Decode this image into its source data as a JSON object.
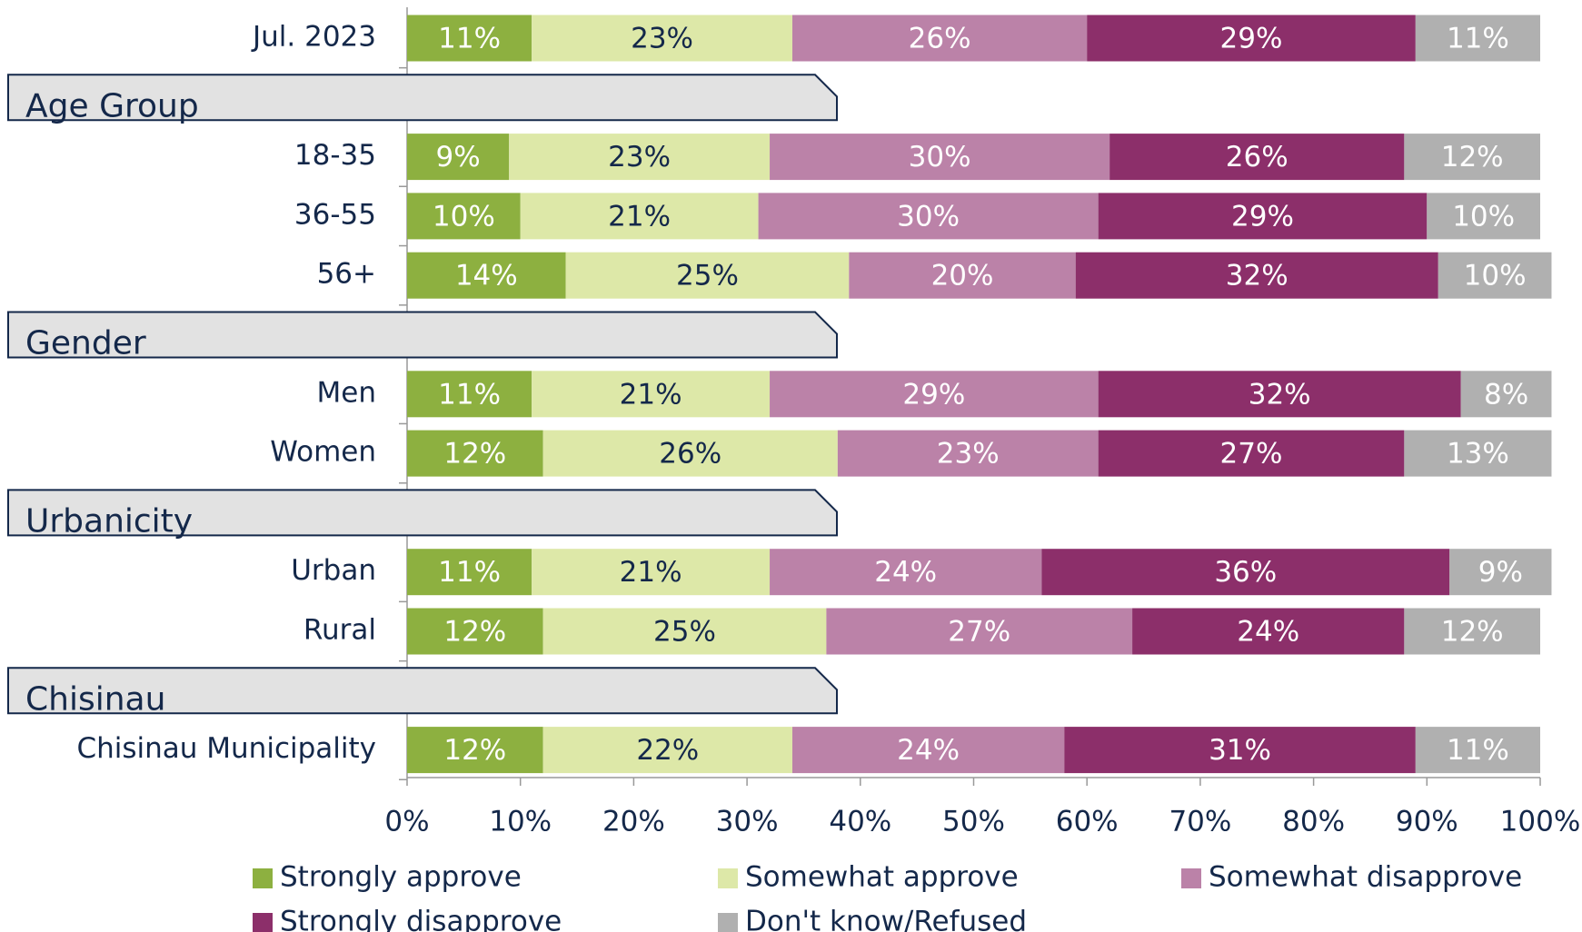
{
  "chart_data": {
    "type": "stacked-bar-horizontal",
    "categories": [
      "Jul. 2023",
      "Age Group",
      "18-35",
      "36-55",
      "56+",
      "Gender",
      "Men",
      "Women",
      "Urbanicity",
      "Urban",
      "Rural",
      "Chisinau",
      "Chisinau Municipality"
    ],
    "series": [
      {
        "name": "Strongly approve",
        "color": "#8db040",
        "values": [
          11,
          null,
          9,
          10,
          14,
          null,
          11,
          12,
          null,
          11,
          12,
          null,
          12
        ],
        "value_labels": [
          "11%",
          null,
          "9%",
          "10%",
          "14%",
          null,
          "11%",
          "12%",
          null,
          "11%",
          "12%",
          null,
          "12%"
        ]
      },
      {
        "name": "Somewhat approve",
        "color": "#dde8a8",
        "values": [
          23,
          null,
          23,
          21,
          25,
          null,
          21,
          26,
          null,
          21,
          25,
          null,
          22
        ],
        "value_labels": [
          "23%",
          null,
          "23%",
          "21%",
          "25%",
          null,
          "21%",
          "26%",
          null,
          "21%",
          "25%",
          null,
          "22%"
        ]
      },
      {
        "name": "Somewhat disapprove",
        "color": "#bb82a8",
        "values": [
          26,
          null,
          30,
          30,
          20,
          null,
          29,
          23,
          null,
          24,
          27,
          null,
          24
        ],
        "value_labels": [
          "26%",
          null,
          "30%",
          "30%",
          "20%",
          null,
          "29%",
          "23%",
          null,
          "24%",
          "27%",
          null,
          "24%"
        ]
      },
      {
        "name": "Strongly disapprove",
        "color": "#8c2f6a",
        "values": [
          29,
          null,
          26,
          29,
          32,
          null,
          32,
          27,
          null,
          36,
          24,
          null,
          31
        ],
        "value_labels": [
          "29%",
          null,
          "26%",
          "29%",
          "32%",
          null,
          "32%",
          "27%",
          null,
          "36%",
          "24%",
          null,
          "31%"
        ]
      },
      {
        "name": "Don't know/Refused",
        "color": "#b0b0b0",
        "values": [
          11,
          null,
          12,
          10,
          10,
          null,
          8,
          13,
          null,
          9,
          12,
          null,
          11
        ],
        "value_labels": [
          "11%",
          null,
          "12%",
          "10%",
          "10%",
          null,
          "8%",
          "13%",
          null,
          "9%",
          "12%",
          null,
          "11%"
        ]
      }
    ],
    "xlim": [
      0,
      100
    ],
    "xticks": [
      {
        "value": 0,
        "label": "0%"
      },
      {
        "value": 10,
        "label": "10%"
      },
      {
        "value": 20,
        "label": "20%"
      },
      {
        "value": 30,
        "label": "30%"
      },
      {
        "value": 40,
        "label": "40%"
      },
      {
        "value": 50,
        "label": "50%"
      },
      {
        "value": 60,
        "label": "60%"
      },
      {
        "value": 70,
        "label": "70%"
      },
      {
        "value": 80,
        "label": "80%"
      },
      {
        "value": 90,
        "label": "90%"
      },
      {
        "value": 100,
        "label": "100%"
      }
    ],
    "legend": "bottom"
  }
}
